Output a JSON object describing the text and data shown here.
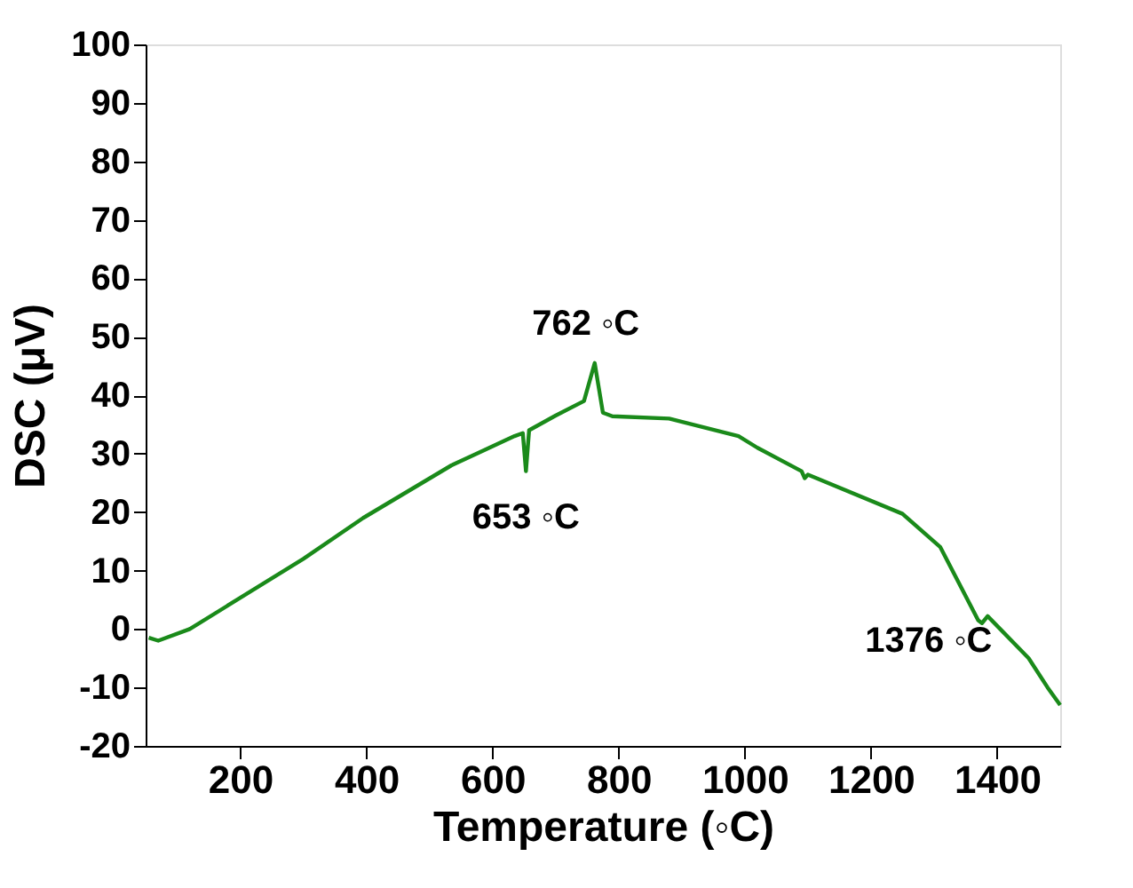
{
  "chart_data": {
    "type": "line",
    "xlabel": "Temperature  (◦C)",
    "ylabel": "DSC  (μV)",
    "xlim": [
      50,
      1500
    ],
    "ylim": [
      -20,
      100
    ],
    "xticks": [
      200,
      400,
      600,
      800,
      1000,
      1200,
      1400
    ],
    "yticks": [
      -20,
      -10,
      0,
      10,
      20,
      30,
      40,
      50,
      60,
      70,
      80,
      90,
      100
    ],
    "grid": false,
    "marker": "none",
    "line_style": "solid",
    "series": [
      {
        "color": "#1a8a1a",
        "x": [
          55,
          70,
          120,
          195,
          300,
          395,
          535,
          635,
          648,
          653,
          658,
          700,
          745,
          762,
          775,
          790,
          880,
          990,
          1020,
          1090,
          1095,
          1100,
          1250,
          1310,
          1370,
          1376,
          1385,
          1450,
          1480,
          1500
        ],
        "values": [
          -1.5,
          -2,
          0,
          5,
          12,
          19,
          28,
          33,
          33.5,
          27,
          34,
          36.5,
          39,
          45.5,
          37,
          36.4,
          36,
          33,
          31,
          27,
          25.8,
          26.4,
          19.7,
          14,
          1.5,
          1,
          2.2,
          -5,
          -10,
          -13
        ]
      }
    ],
    "annotations": [
      {
        "text": "762 ◦C",
        "x": 762,
        "y": 45.5
      },
      {
        "text": "653 ◦C",
        "x": 653,
        "y": 27
      },
      {
        "text": "1376 ◦C",
        "x": 1376,
        "y": 1
      }
    ]
  }
}
